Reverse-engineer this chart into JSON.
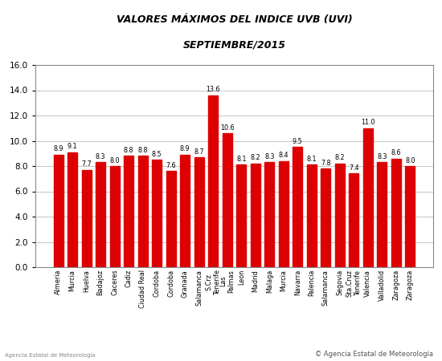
{
  "title_line1": "VALORES MÁXIMOS DEL INDICE UVB (UVI)",
  "title_line2": "SEPTIEMBRE/2015",
  "values": [
    8.9,
    9.1,
    7.7,
    8.3,
    8.0,
    8.8,
    8.8,
    8.5,
    7.6,
    8.9,
    8.7,
    13.6,
    10.6,
    8.1,
    8.2,
    8.3,
    8.4,
    9.5,
    8.1,
    7.8,
    8.2,
    7.4,
    11.0,
    8.3,
    8.6,
    8.0
  ],
  "x_labels": [
    "Almeria",
    "Murcia",
    "Huelva",
    "Badajoz",
    "Caceres",
    "Cadiz",
    "Ciudad Real",
    "Cordoba",
    "Cordoba",
    "Granada",
    "Salamanca",
    "S.Crz\nTenerife",
    "Las\nPalmas",
    "Leon",
    "Madrid",
    "Malaga",
    "Murcia",
    "Navarra",
    "Palencia",
    "Salamanca",
    "Segovia",
    "Sta.Cruz\nTenerife",
    "Valencia",
    "Valladolid",
    "Zaragoza",
    "Zaragoza"
  ],
  "bar_color": "#dd0000",
  "ylim": [
    0,
    16
  ],
  "yticks": [
    0.0,
    2.0,
    4.0,
    6.0,
    8.0,
    10.0,
    12.0,
    14.0,
    16.0
  ],
  "grid_color": "#bbbbbb",
  "background_color": "#ffffff",
  "plot_bg_color": "#ffffff",
  "border_color": "#888888",
  "copyright_text": "© Agencia Estatal de Meteorología",
  "title_fontsize": 9,
  "label_fontsize": 5.8,
  "value_fontsize": 5.8,
  "ytick_fontsize": 7.5
}
